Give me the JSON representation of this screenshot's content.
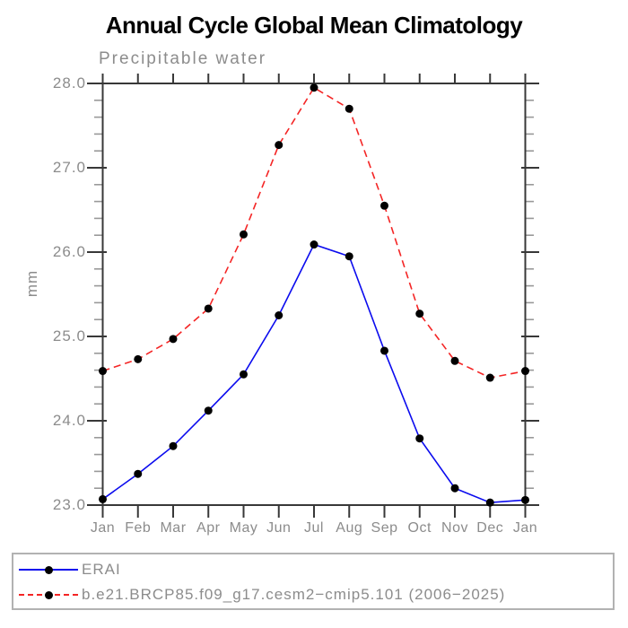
{
  "header": {
    "title": "Annual Cycle Global Mean Climatology"
  },
  "colors": {
    "axis": "#383838",
    "minor_tick": "#999999",
    "label_gray": "#8c8c8c",
    "title_black": "#000000",
    "erai_blue": "#0b0bee",
    "model_red": "#f42525",
    "marker_black": "#000000",
    "legend_border": "#b2b2b2"
  },
  "chart_data": {
    "type": "line",
    "title": "Annual Cycle Global Mean Climatology",
    "subtitle": "Precipitable water",
    "xlabel": "",
    "ylabel": "mm",
    "categories": [
      "Jan",
      "Feb",
      "Mar",
      "Apr",
      "May",
      "Jun",
      "Jul",
      "Aug",
      "Sep",
      "Oct",
      "Nov",
      "Dec",
      "Jan"
    ],
    "ylim": [
      23.0,
      28.0
    ],
    "y_tick_values": [
      23.0,
      24.0,
      25.0,
      26.0,
      27.0,
      28.0
    ],
    "y_tick_labels": [
      "23.0",
      "24.0",
      "25.0",
      "26.0",
      "27.0",
      "28.0"
    ],
    "y_minor_step": 0.2,
    "grid": false,
    "legend_position": "bottom-left-box",
    "series": [
      {
        "name": "ERAI",
        "color": "#0b0bee",
        "style": "solid",
        "marker": "circle",
        "marker_color": "#000000",
        "values": [
          23.07,
          23.37,
          23.7,
          24.12,
          24.55,
          25.25,
          26.09,
          25.95,
          24.83,
          23.79,
          23.2,
          23.03,
          23.06
        ]
      },
      {
        "name": "b.e21.BRCP85.f09_g17.cesm2−cmip5.101 (2006−2025)",
        "color": "#f42525",
        "style": "dashed",
        "marker": "circle",
        "marker_color": "#000000",
        "values": [
          24.59,
          24.73,
          24.97,
          25.33,
          26.21,
          27.27,
          27.95,
          27.7,
          26.55,
          25.27,
          24.71,
          24.51,
          24.59
        ]
      }
    ]
  }
}
